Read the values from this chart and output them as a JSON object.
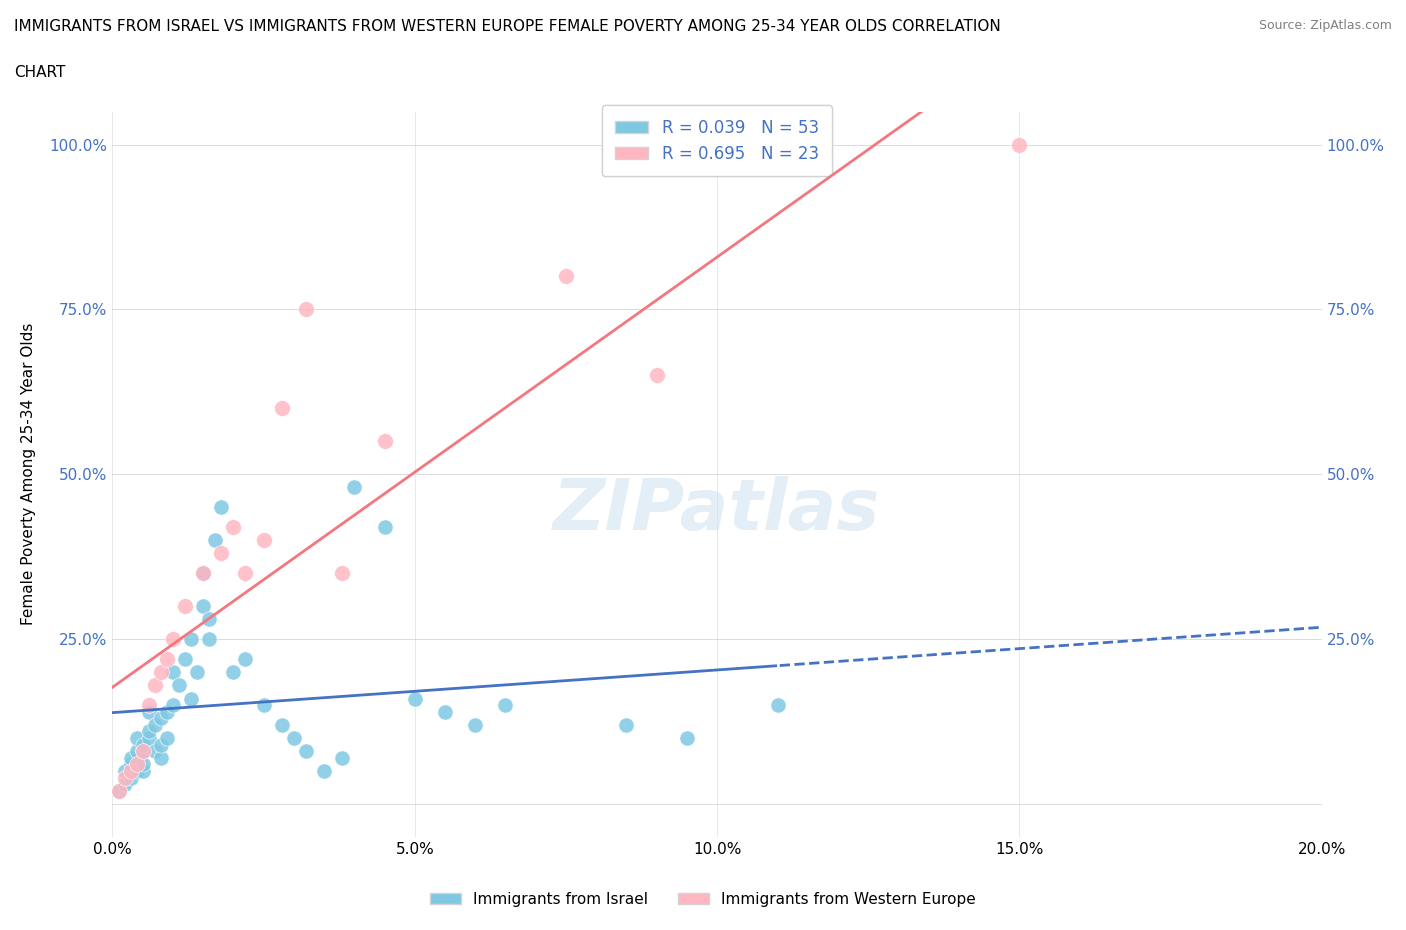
{
  "title_line1": "IMMIGRANTS FROM ISRAEL VS IMMIGRANTS FROM WESTERN EUROPE FEMALE POVERTY AMONG 25-34 YEAR OLDS CORRELATION",
  "title_line2": "CHART",
  "source": "Source: ZipAtlas.com",
  "ylabel": "Female Poverty Among 25-34 Year Olds",
  "xlim": [
    0.0,
    0.2
  ],
  "ylim": [
    -0.05,
    1.05
  ],
  "xticks": [
    0.0,
    0.05,
    0.1,
    0.15,
    0.2
  ],
  "xtick_labels": [
    "0.0%",
    "5.0%",
    "10.0%",
    "15.0%",
    "20.0%"
  ],
  "yticks": [
    0.0,
    0.25,
    0.5,
    0.75,
    1.0
  ],
  "ytick_labels": [
    "",
    "25.0%",
    "50.0%",
    "75.0%",
    "100.0%"
  ],
  "israel_color": "#7ec8e3",
  "israel_color_line": "#4472c4",
  "western_europe_color": "#ffb6c1",
  "western_europe_color_line": "#f4777f",
  "R_israel": 0.039,
  "N_israel": 53,
  "R_western": 0.695,
  "N_western": 23,
  "watermark": "ZIPatlas",
  "israel_x": [
    0.001,
    0.002,
    0.002,
    0.003,
    0.003,
    0.003,
    0.004,
    0.004,
    0.004,
    0.005,
    0.005,
    0.005,
    0.005,
    0.006,
    0.006,
    0.006,
    0.007,
    0.007,
    0.008,
    0.008,
    0.008,
    0.009,
    0.009,
    0.01,
    0.01,
    0.011,
    0.012,
    0.013,
    0.013,
    0.014,
    0.015,
    0.015,
    0.016,
    0.016,
    0.017,
    0.018,
    0.02,
    0.022,
    0.025,
    0.028,
    0.03,
    0.032,
    0.035,
    0.038,
    0.04,
    0.045,
    0.05,
    0.055,
    0.06,
    0.065,
    0.085,
    0.095,
    0.11
  ],
  "israel_y": [
    0.02,
    0.03,
    0.05,
    0.04,
    0.06,
    0.07,
    0.05,
    0.08,
    0.1,
    0.05,
    0.06,
    0.08,
    0.09,
    0.1,
    0.11,
    0.14,
    0.08,
    0.12,
    0.07,
    0.09,
    0.13,
    0.1,
    0.14,
    0.15,
    0.2,
    0.18,
    0.22,
    0.16,
    0.25,
    0.2,
    0.3,
    0.35,
    0.25,
    0.28,
    0.4,
    0.45,
    0.2,
    0.22,
    0.15,
    0.12,
    0.1,
    0.08,
    0.05,
    0.07,
    0.48,
    0.42,
    0.16,
    0.14,
    0.12,
    0.15,
    0.12,
    0.1,
    0.15
  ],
  "western_x": [
    0.001,
    0.002,
    0.003,
    0.004,
    0.005,
    0.006,
    0.007,
    0.008,
    0.009,
    0.01,
    0.012,
    0.015,
    0.018,
    0.02,
    0.022,
    0.025,
    0.028,
    0.032,
    0.038,
    0.045,
    0.075,
    0.09,
    0.15
  ],
  "western_y": [
    0.02,
    0.04,
    0.05,
    0.06,
    0.08,
    0.15,
    0.18,
    0.2,
    0.22,
    0.25,
    0.3,
    0.35,
    0.38,
    0.42,
    0.35,
    0.4,
    0.6,
    0.75,
    0.35,
    0.55,
    0.8,
    0.65,
    1.0
  ],
  "legend_israel_label": "Immigrants from Israel",
  "legend_western_label": "Immigrants from Western Europe"
}
